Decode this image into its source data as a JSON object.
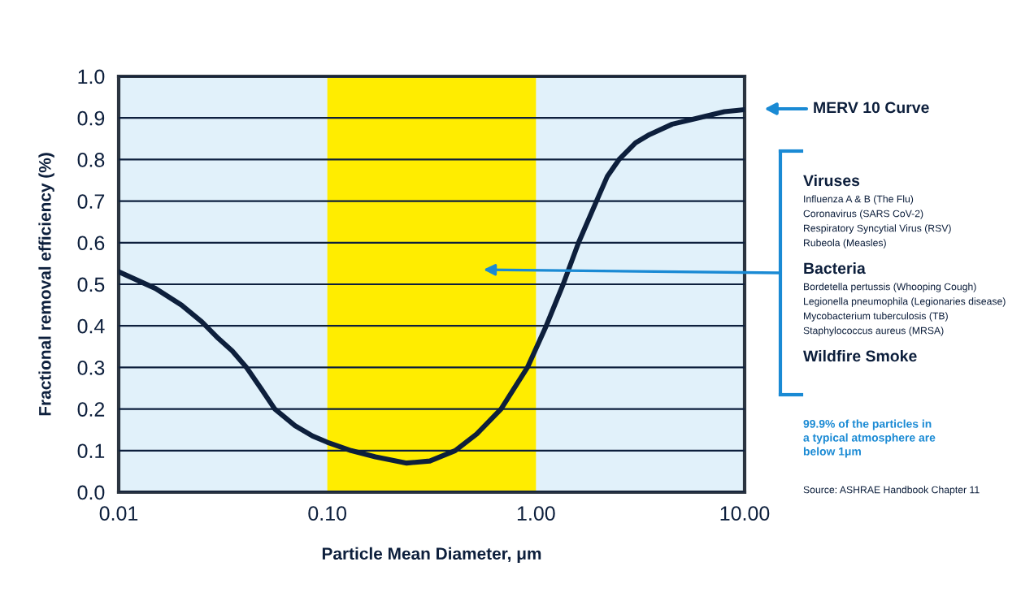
{
  "chart_data": {
    "type": "line",
    "xlabel": "Particle Mean Diameter, μm",
    "ylabel": "Fractional removal efficiency (%)",
    "x": [
      0.01,
      0.015,
      0.02,
      0.025,
      0.03,
      0.035,
      0.041,
      0.048,
      0.056,
      0.07,
      0.085,
      0.1,
      0.13,
      0.17,
      0.24,
      0.31,
      0.41,
      0.52,
      0.68,
      0.91,
      1.12,
      1.35,
      1.6,
      1.95,
      2.2,
      2.5,
      3.0,
      3.5,
      4.5,
      6.0,
      8.0,
      10.0
    ],
    "series": [
      {
        "color": "#0d1f3c",
        "values": [
          0.53,
          0.49,
          0.45,
          0.41,
          0.37,
          0.34,
          0.3,
          0.25,
          0.2,
          0.16,
          0.135,
          0.12,
          0.1,
          0.085,
          0.07,
          0.075,
          0.1,
          0.14,
          0.2,
          0.3,
          0.4,
          0.5,
          0.6,
          0.7,
          0.76,
          0.8,
          0.84,
          0.86,
          0.885,
          0.9,
          0.915,
          0.92
        ]
      }
    ],
    "log": "x",
    "xlim": [
      0.01,
      10
    ],
    "ylim": [
      0,
      1
    ],
    "xticks": [
      {
        "value": 0.01,
        "label": "0.01"
      },
      {
        "value": 0.1,
        "label": "0.10"
      },
      {
        "value": 1,
        "label": "1.00"
      },
      {
        "value": 10,
        "label": "10.00"
      }
    ],
    "yticks": [
      {
        "value": 0,
        "label": "0.0"
      },
      0.1,
      0.2,
      0.3,
      0.4,
      0.5,
      0.6,
      0.7,
      0.8,
      0.9,
      {
        "value": 1,
        "label": "1.0"
      }
    ],
    "grid": "y",
    "marker": "none",
    "line_style": "solid",
    "bands": [
      {
        "axis": "x",
        "from": 0.1,
        "to": 1,
        "color": "#ffed00"
      }
    ],
    "annotations": [
      "MERV 10 Curve",
      "Viruses",
      "Influenza A & B (The Flu)",
      "Coronavirus (SARS CoV-2)",
      "Respiratory Syncytial Virus (RSV)",
      "Rubeola (Measles)",
      "Bacteria",
      "Bordetella pertussis (Whooping Cough)",
      "Legionella pneumophila (Legionaries disease)",
      "Mycobacterium tuberculosis (TB)",
      "Staphylococcus aureus (MRSA)",
      "Wildfire Smoke",
      "99.9% of the particles in\na typical atmosphere are\nbelow 1μm",
      "Source: ASHRAE Handbook Chapter 11"
    ]
  }
}
